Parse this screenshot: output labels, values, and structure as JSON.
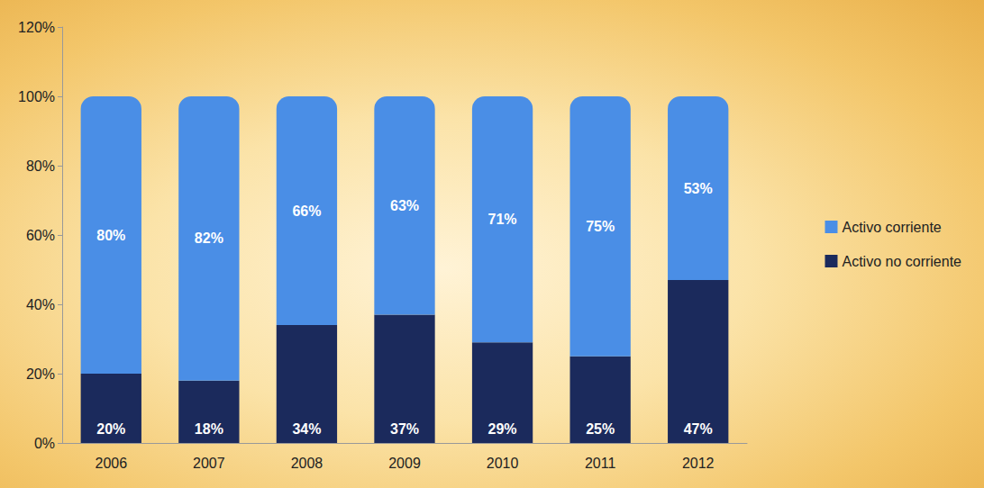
{
  "chart_data": {
    "type": "bar",
    "stacked": true,
    "data_labels": true,
    "grid": false,
    "legend": "right",
    "categories": [
      "2006",
      "2007",
      "2008",
      "2009",
      "2010",
      "2011",
      "2012"
    ],
    "series": [
      {
        "name": "Activo no corriente",
        "color": "#1b2a5c",
        "values": [
          20,
          18,
          34,
          37,
          29,
          25,
          47
        ],
        "value_labels": [
          "20%",
          "18%",
          "34%",
          "37%",
          "29%",
          "25%",
          "47%"
        ]
      },
      {
        "name": "Activo corriente",
        "color": "#4a8ee6",
        "values": [
          80,
          82,
          66,
          63,
          71,
          75,
          53
        ],
        "value_labels": [
          "80%",
          "82%",
          "66%",
          "63%",
          "71%",
          "75%",
          "53%"
        ]
      }
    ],
    "ylim": [
      0,
      120
    ],
    "yticks": [
      {
        "value": 0,
        "label": "0%"
      },
      {
        "value": 20,
        "label": "20%"
      },
      {
        "value": 40,
        "label": "40%"
      },
      {
        "value": 60,
        "label": "60%"
      },
      {
        "value": 80,
        "label": "80%"
      },
      {
        "value": 100,
        "label": "100%"
      },
      {
        "value": 120,
        "label": "120%"
      }
    ]
  }
}
